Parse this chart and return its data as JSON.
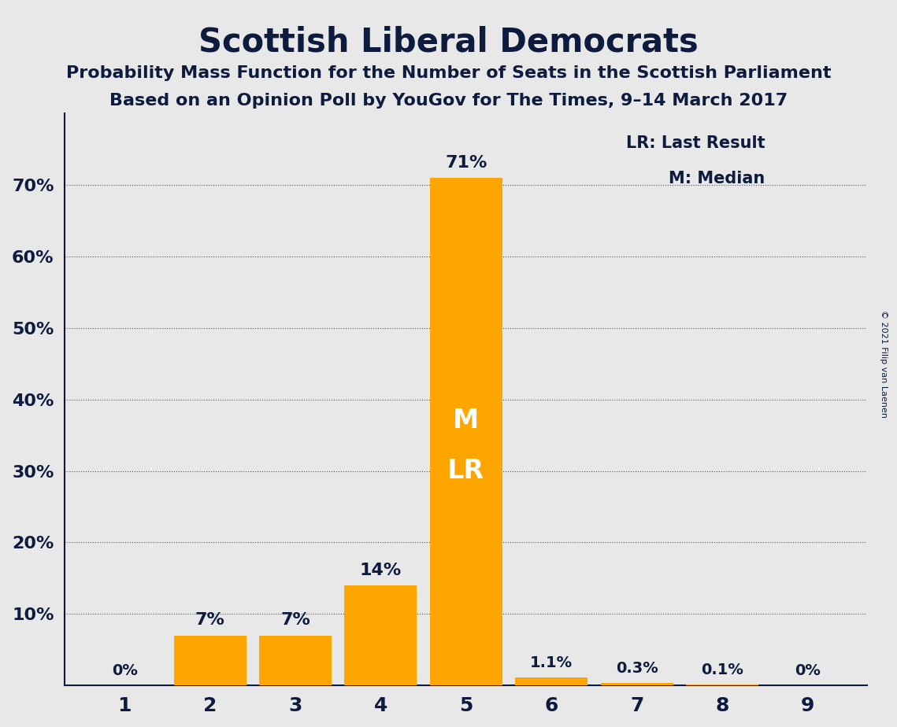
{
  "title": "Scottish Liberal Democrats",
  "subtitle1": "Probability Mass Function for the Number of Seats in the Scottish Parliament",
  "subtitle2": "Based on an Opinion Poll by YouGov for The Times, 9–14 March 2017",
  "copyright": "© 2021 Filip van Laenen",
  "categories": [
    1,
    2,
    3,
    4,
    5,
    6,
    7,
    8,
    9
  ],
  "values": [
    0.0,
    7.0,
    7.0,
    14.0,
    71.0,
    1.1,
    0.3,
    0.1,
    0.0
  ],
  "bar_color": "#FFA500",
  "bar_color_main": "#FFA500",
  "background_color": "#E8E8E8",
  "text_color": "#0D1B3E",
  "label_texts": [
    "0%",
    "7%",
    "7%",
    "14%",
    "71%",
    "1.1%",
    "0.3%",
    "0.1%",
    "0%"
  ],
  "median_seat": 5,
  "last_result_seat": 5,
  "legend_lr": "LR: Last Result",
  "legend_m": "M: Median",
  "ylim": [
    0,
    80
  ],
  "yticks": [
    0,
    10,
    20,
    30,
    40,
    50,
    60,
    70,
    80
  ],
  "ytick_labels": [
    "",
    "10%",
    "20%",
    "30%",
    "40%",
    "50%",
    "60%",
    "70%",
    ""
  ],
  "grid_yticks": [
    10,
    20,
    30,
    40,
    50,
    60,
    70
  ]
}
